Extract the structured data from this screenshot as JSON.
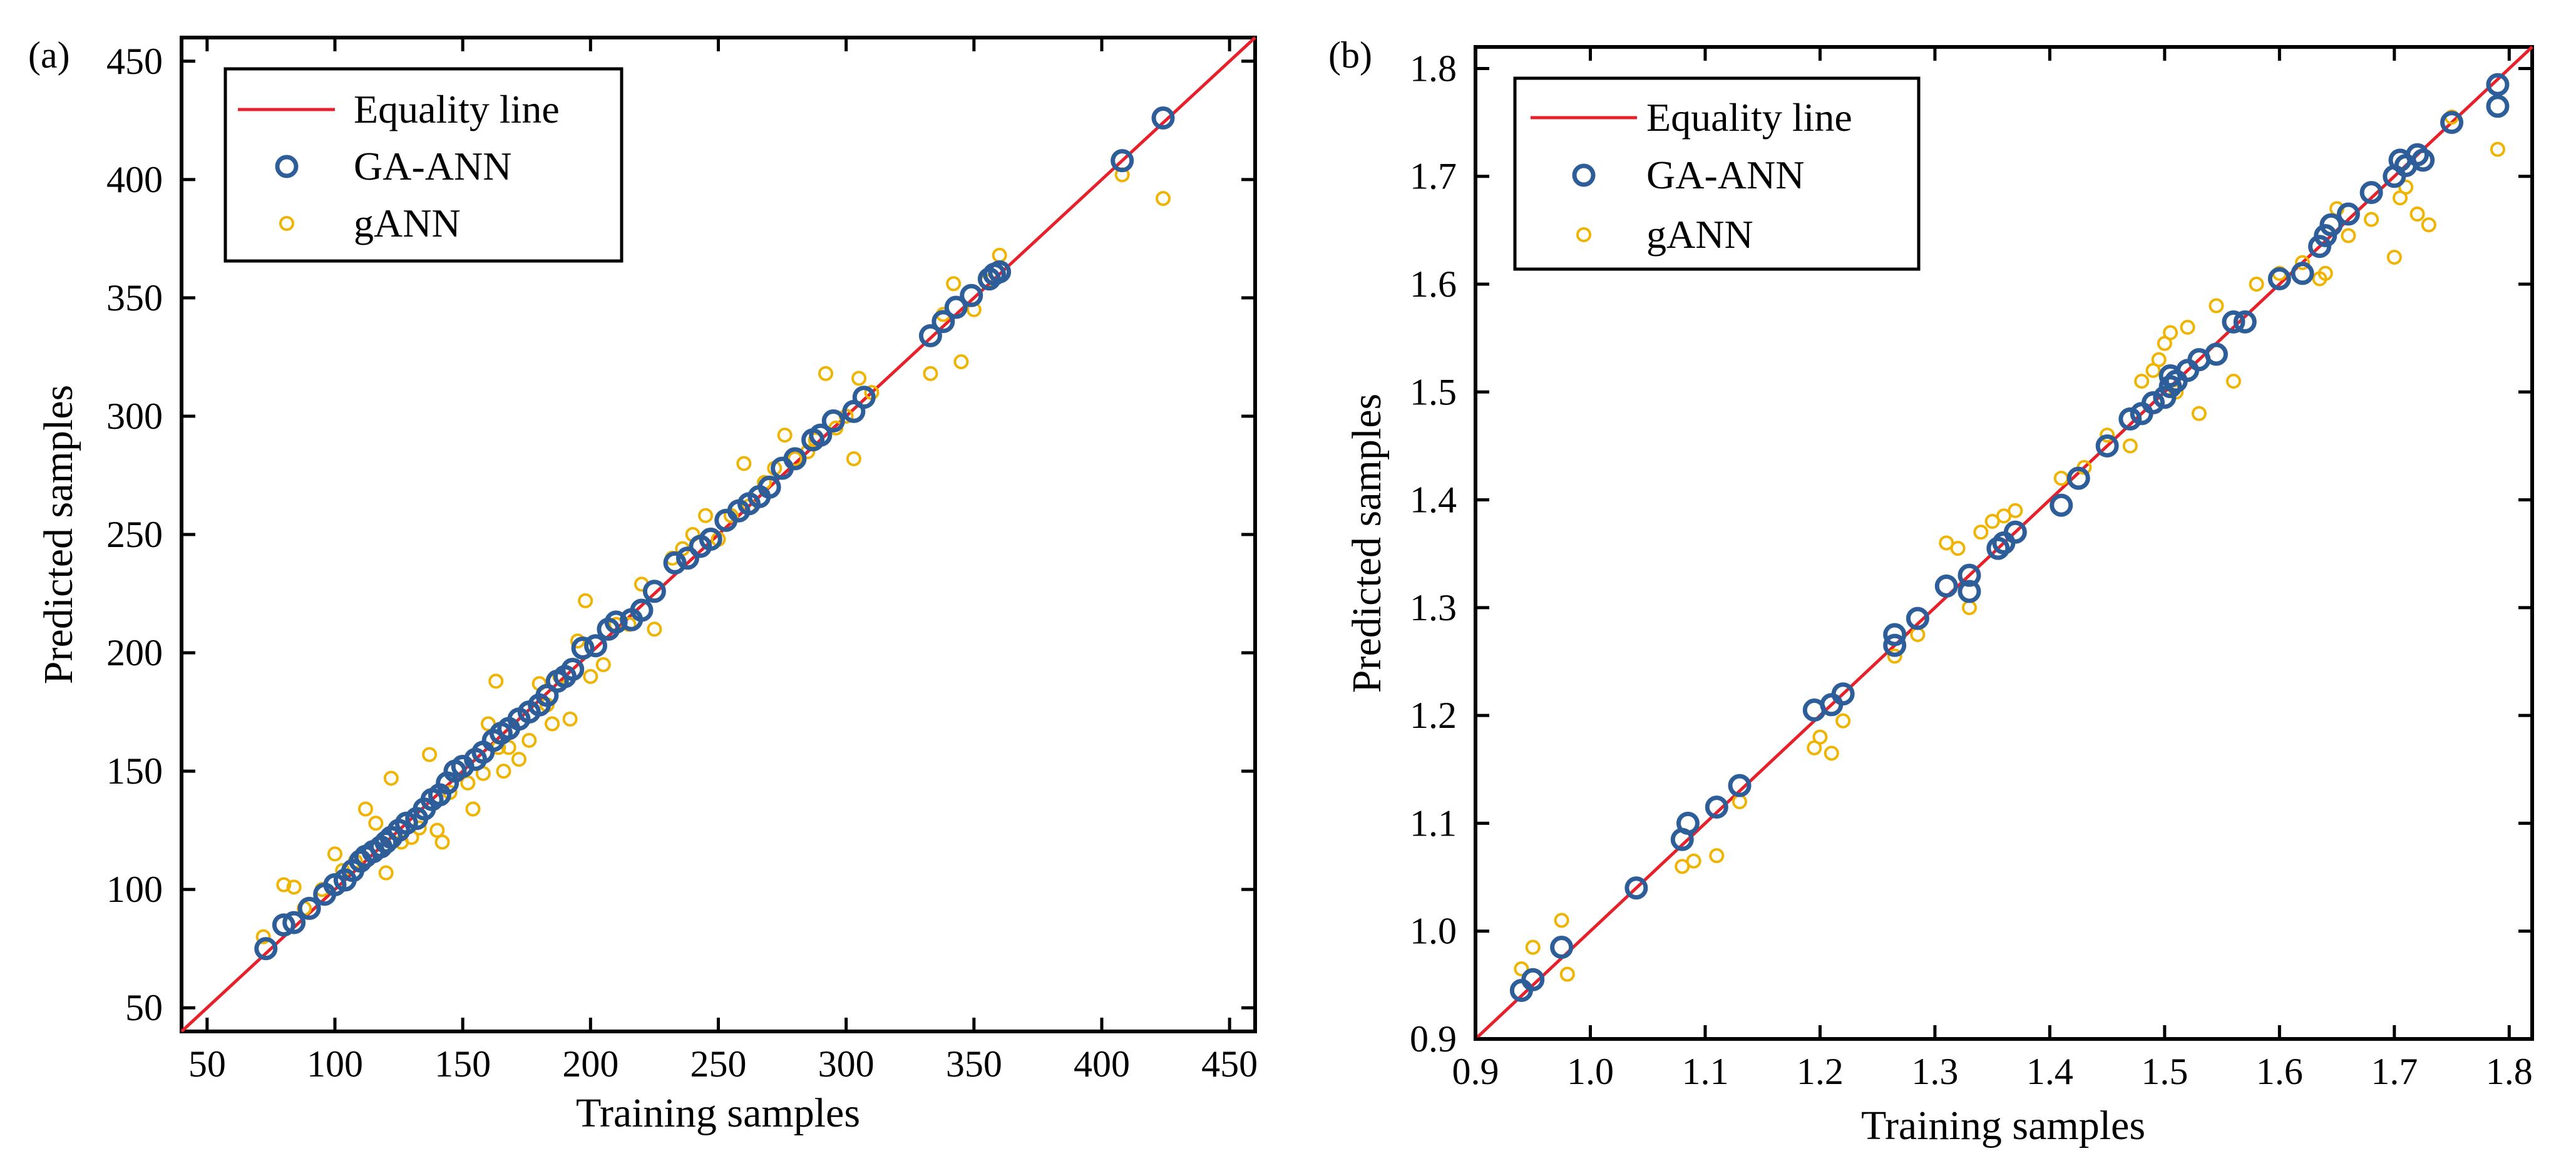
{
  "chart_data": [
    {
      "panel_label": "(a)",
      "type": "scatter",
      "xlabel": "Training samples",
      "ylabel": "Predicted samples",
      "xlim": [
        40,
        460
      ],
      "ylim": [
        40,
        460
      ],
      "xticks": [
        50,
        100,
        150,
        200,
        250,
        300,
        350,
        400,
        450
      ],
      "yticks": [
        50,
        100,
        150,
        200,
        250,
        300,
        350,
        400,
        450
      ],
      "tick_labels_x": [
        "50",
        "100",
        "150",
        "200",
        "250",
        "300",
        "350",
        "400",
        "450"
      ],
      "tick_labels_y": [
        "50",
        "100",
        "150",
        "200",
        "250",
        "300",
        "350",
        "400",
        "450"
      ],
      "legend_position": "top-left",
      "legend": [
        "Equality line",
        "GA-ANN",
        "gANN"
      ],
      "equality_line": [
        [
          40,
          40
        ],
        [
          460,
          460
        ]
      ],
      "series": [
        {
          "name": "GA-ANN",
          "marker": "circle",
          "color": "#2e5e9a",
          "points": [
            [
              73,
              75
            ],
            [
              80,
              85
            ],
            [
              84,
              86
            ],
            [
              90,
              92
            ],
            [
              96,
              98
            ],
            [
              100,
              102
            ],
            [
              104,
              104
            ],
            [
              107,
              108
            ],
            [
              110,
              112
            ],
            [
              112,
              114
            ],
            [
              115,
              116
            ],
            [
              118,
              118
            ],
            [
              120,
              120
            ],
            [
              122,
              122
            ],
            [
              125,
              125
            ],
            [
              128,
              128
            ],
            [
              132,
              130
            ],
            [
              135,
              134
            ],
            [
              138,
              138
            ],
            [
              141,
              140
            ],
            [
              144,
              145
            ],
            [
              147,
              150
            ],
            [
              150,
              152
            ],
            [
              155,
              155
            ],
            [
              158,
              158
            ],
            [
              162,
              163
            ],
            [
              165,
              166
            ],
            [
              168,
              168
            ],
            [
              172,
              172
            ],
            [
              176,
              175
            ],
            [
              180,
              178
            ],
            [
              183,
              182
            ],
            [
              187,
              188
            ],
            [
              190,
              190
            ],
            [
              193,
              193
            ],
            [
              197,
              202
            ],
            [
              202,
              203
            ],
            [
              207,
              210
            ],
            [
              210,
              213
            ],
            [
              216,
              214
            ],
            [
              220,
              218
            ],
            [
              225,
              226
            ],
            [
              233,
              238
            ],
            [
              238,
              240
            ],
            [
              243,
              245
            ],
            [
              247,
              248
            ],
            [
              253,
              256
            ],
            [
              258,
              260
            ],
            [
              262,
              263
            ],
            [
              266,
              266
            ],
            [
              270,
              270
            ],
            [
              275,
              278
            ],
            [
              280,
              282
            ],
            [
              287,
              290
            ],
            [
              290,
              292
            ],
            [
              295,
              298
            ],
            [
              303,
              302
            ],
            [
              307,
              308
            ],
            [
              333,
              334
            ],
            [
              338,
              340
            ],
            [
              343,
              346
            ],
            [
              349,
              351
            ],
            [
              356,
              358
            ],
            [
              358,
              360
            ],
            [
              360,
              361
            ],
            [
              408,
              408
            ],
            [
              424,
              426
            ]
          ]
        },
        {
          "name": "gANN",
          "marker": "circle-small",
          "color": "#f0b400",
          "points": [
            [
              72,
              80
            ],
            [
              80,
              102
            ],
            [
              84,
              101
            ],
            [
              88,
              92
            ],
            [
              95,
              100
            ],
            [
              100,
              115
            ],
            [
              103,
              108
            ],
            [
              108,
              112
            ],
            [
              112,
              134
            ],
            [
              116,
              128
            ],
            [
              120,
              107
            ],
            [
              122,
              147
            ],
            [
              126,
              120
            ],
            [
              130,
              122
            ],
            [
              133,
              126
            ],
            [
              137,
              157
            ],
            [
              140,
              125
            ],
            [
              142,
              120
            ],
            [
              145,
              141
            ],
            [
              152,
              145
            ],
            [
              154,
              134
            ],
            [
              158,
              149
            ],
            [
              160,
              170
            ],
            [
              163,
              188
            ],
            [
              164,
              160
            ],
            [
              166,
              150
            ],
            [
              168,
              160
            ],
            [
              172,
              155
            ],
            [
              176,
              163
            ],
            [
              180,
              187
            ],
            [
              183,
              178
            ],
            [
              185,
              170
            ],
            [
              188,
              190
            ],
            [
              192,
              172
            ],
            [
              195,
              205
            ],
            [
              198,
              222
            ],
            [
              200,
              190
            ],
            [
              205,
              195
            ],
            [
              210,
              212
            ],
            [
              215,
              212
            ],
            [
              220,
              229
            ],
            [
              225,
              210
            ],
            [
              232,
              240
            ],
            [
              236,
              244
            ],
            [
              240,
              250
            ],
            [
              245,
              258
            ],
            [
              250,
              248
            ],
            [
              255,
              258
            ],
            [
              260,
              280
            ],
            [
              262,
              262
            ],
            [
              268,
              272
            ],
            [
              272,
              278
            ],
            [
              276,
              292
            ],
            [
              280,
              282
            ],
            [
              285,
              285
            ],
            [
              288,
              290
            ],
            [
              292,
              318
            ],
            [
              296,
              295
            ],
            [
              300,
              300
            ],
            [
              303,
              282
            ],
            [
              305,
              316
            ],
            [
              310,
              310
            ],
            [
              333,
              318
            ],
            [
              338,
              343
            ],
            [
              342,
              356
            ],
            [
              345,
              323
            ],
            [
              350,
              345
            ],
            [
              355,
              357
            ],
            [
              360,
              368
            ],
            [
              408,
              402
            ],
            [
              424,
              392
            ]
          ]
        }
      ]
    },
    {
      "panel_label": "(b)",
      "type": "scatter",
      "xlabel": "Training samples",
      "ylabel": "Predicted samples",
      "xlim": [
        0.9,
        1.82
      ],
      "ylim": [
        0.9,
        1.82
      ],
      "xticks": [
        0.9,
        1.0,
        1.1,
        1.2,
        1.3,
        1.4,
        1.5,
        1.6,
        1.7,
        1.8
      ],
      "yticks": [
        0.9,
        1.0,
        1.1,
        1.2,
        1.3,
        1.4,
        1.5,
        1.6,
        1.7,
        1.8
      ],
      "tick_labels_x": [
        "0.9",
        "1.0",
        "1.1",
        "1.2",
        "1.3",
        "1.4",
        "1.5",
        "1.6",
        "1.7",
        "1.8"
      ],
      "tick_labels_y": [
        "0.9",
        "1.0",
        "1.1",
        "1.2",
        "1.3",
        "1.4",
        "1.5",
        "1.6",
        "1.7",
        "1.8"
      ],
      "legend_position": "top-left",
      "legend": [
        "Equality line",
        "GA-ANN",
        "gANN"
      ],
      "equality_line": [
        [
          0.9,
          0.9
        ],
        [
          1.82,
          1.82
        ]
      ],
      "series": [
        {
          "name": "GA-ANN",
          "marker": "circle",
          "color": "#2e5e9a",
          "points": [
            [
              0.94,
              0.945
            ],
            [
              0.95,
              0.955
            ],
            [
              0.975,
              0.985
            ],
            [
              1.04,
              1.04
            ],
            [
              1.08,
              1.085
            ],
            [
              1.085,
              1.1
            ],
            [
              1.11,
              1.115
            ],
            [
              1.13,
              1.135
            ],
            [
              1.195,
              1.205
            ],
            [
              1.21,
              1.21
            ],
            [
              1.22,
              1.22
            ],
            [
              1.265,
              1.265
            ],
            [
              1.265,
              1.275
            ],
            [
              1.285,
              1.29
            ],
            [
              1.31,
              1.32
            ],
            [
              1.33,
              1.33
            ],
            [
              1.33,
              1.315
            ],
            [
              1.355,
              1.355
            ],
            [
              1.36,
              1.36
            ],
            [
              1.37,
              1.37
            ],
            [
              1.41,
              1.395
            ],
            [
              1.425,
              1.42
            ],
            [
              1.45,
              1.45
            ],
            [
              1.47,
              1.475
            ],
            [
              1.48,
              1.48
            ],
            [
              1.49,
              1.49
            ],
            [
              1.5,
              1.495
            ],
            [
              1.505,
              1.505
            ],
            [
              1.51,
              1.51
            ],
            [
              1.505,
              1.515
            ],
            [
              1.52,
              1.52
            ],
            [
              1.53,
              1.53
            ],
            [
              1.545,
              1.535
            ],
            [
              1.56,
              1.565
            ],
            [
              1.57,
              1.565
            ],
            [
              1.6,
              1.605
            ],
            [
              1.62,
              1.61
            ],
            [
              1.635,
              1.635
            ],
            [
              1.64,
              1.645
            ],
            [
              1.645,
              1.655
            ],
            [
              1.66,
              1.665
            ],
            [
              1.68,
              1.685
            ],
            [
              1.7,
              1.7
            ],
            [
              1.705,
              1.715
            ],
            [
              1.71,
              1.71
            ],
            [
              1.72,
              1.72
            ],
            [
              1.725,
              1.715
            ],
            [
              1.75,
              1.75
            ],
            [
              1.79,
              1.785
            ],
            [
              1.79,
              1.765
            ]
          ]
        },
        {
          "name": "gANN",
          "marker": "circle-small",
          "color": "#f0b400",
          "points": [
            [
              0.94,
              0.965
            ],
            [
              0.95,
              0.985
            ],
            [
              0.975,
              1.01
            ],
            [
              0.98,
              0.96
            ],
            [
              1.08,
              1.06
            ],
            [
              1.09,
              1.065
            ],
            [
              1.11,
              1.07
            ],
            [
              1.13,
              1.12
            ],
            [
              1.195,
              1.17
            ],
            [
              1.2,
              1.18
            ],
            [
              1.21,
              1.165
            ],
            [
              1.22,
              1.195
            ],
            [
              1.265,
              1.255
            ],
            [
              1.285,
              1.275
            ],
            [
              1.31,
              1.36
            ],
            [
              1.32,
              1.355
            ],
            [
              1.33,
              1.3
            ],
            [
              1.34,
              1.37
            ],
            [
              1.35,
              1.38
            ],
            [
              1.36,
              1.385
            ],
            [
              1.37,
              1.39
            ],
            [
              1.41,
              1.42
            ],
            [
              1.43,
              1.43
            ],
            [
              1.45,
              1.46
            ],
            [
              1.47,
              1.45
            ],
            [
              1.48,
              1.51
            ],
            [
              1.49,
              1.52
            ],
            [
              1.495,
              1.53
            ],
            [
              1.5,
              1.545
            ],
            [
              1.505,
              1.555
            ],
            [
              1.51,
              1.5
            ],
            [
              1.52,
              1.56
            ],
            [
              1.53,
              1.48
            ],
            [
              1.545,
              1.58
            ],
            [
              1.56,
              1.51
            ],
            [
              1.58,
              1.6
            ],
            [
              1.6,
              1.61
            ],
            [
              1.62,
              1.62
            ],
            [
              1.635,
              1.605
            ],
            [
              1.64,
              1.61
            ],
            [
              1.65,
              1.67
            ],
            [
              1.66,
              1.645
            ],
            [
              1.68,
              1.66
            ],
            [
              1.7,
              1.625
            ],
            [
              1.705,
              1.68
            ],
            [
              1.71,
              1.69
            ],
            [
              1.72,
              1.665
            ],
            [
              1.73,
              1.655
            ],
            [
              1.75,
              1.755
            ],
            [
              1.79,
              1.725
            ]
          ]
        }
      ]
    }
  ]
}
